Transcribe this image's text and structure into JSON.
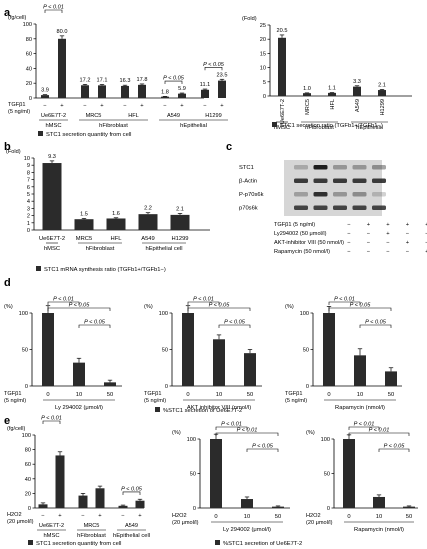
{
  "panel_labels": {
    "a": "a",
    "b": "b",
    "c": "c",
    "d": "d",
    "e": "e"
  },
  "chart_data": [
    {
      "id": "a1",
      "type": "bar",
      "yunit": "(fg/cell)",
      "ylim": [
        0,
        100
      ],
      "yticks": [
        0,
        20,
        40,
        60,
        80,
        100
      ],
      "values": [
        3.9,
        80.0,
        17.2,
        17.1,
        16.3,
        17.8,
        1.8,
        5.9,
        11.1,
        23.5
      ],
      "errors": [
        0.6,
        4.0,
        1.2,
        1.1,
        1.0,
        1.2,
        0.4,
        0.8,
        1.0,
        1.8
      ],
      "data_labels": [
        "3.9",
        "80.0",
        "17.2",
        "17.1",
        "16.3",
        "17.8",
        "1.8",
        "5.9",
        "11.1",
        "23.5"
      ],
      "categories": [
        "−",
        "+",
        "−",
        "+",
        "−",
        "+",
        "−",
        "+",
        "−",
        "+"
      ],
      "groups": [
        "Ue6E7T-2",
        "MRC5",
        "HFL",
        "A549",
        "H1299"
      ],
      "supergroups": [
        "hMSC",
        "hFibroblast",
        "hEpithelial"
      ],
      "row_label": [
        "TGFβ1",
        "(5 ng/ml)"
      ],
      "annotations": [
        "P < 0.01",
        "P < 0.05",
        "P < 0.05"
      ],
      "legend": "STC1 secretion quantity from cell"
    },
    {
      "id": "a2",
      "type": "bar",
      "yunit": "(Fold)",
      "ylim": [
        0,
        25
      ],
      "yticks": [
        0,
        5,
        10,
        15,
        20,
        25
      ],
      "values": [
        20.5,
        1.0,
        1.1,
        3.3,
        2.1
      ],
      "errors": [
        1.0,
        0.1,
        0.1,
        0.3,
        0.2
      ],
      "data_labels": [
        "20.5",
        "1.0",
        "1.1",
        "3.3",
        "2.1"
      ],
      "categories": [
        "Ue6E7T-2",
        "MRC5",
        "HFL",
        "A549",
        "H1299"
      ],
      "supergroups": [
        "hMSC",
        "hFibroblast",
        "hEpithelial"
      ],
      "legend": "STC1 secretion ratio (TGFb1+/TGFb1−)"
    },
    {
      "id": "b",
      "type": "bar",
      "yunit": "(Fold)",
      "ylim": [
        0,
        10
      ],
      "yticks": [
        0,
        1,
        2,
        3,
        4,
        5,
        6,
        7,
        8,
        9,
        10
      ],
      "values": [
        9.3,
        1.5,
        1.6,
        2.2,
        2.1
      ],
      "errors": [
        0.3,
        0.1,
        0.1,
        0.2,
        0.2
      ],
      "data_labels": [
        "9.3",
        "1.5",
        "1.6",
        "2.2",
        "2.1"
      ],
      "categories": [
        "Ue6E7T-2",
        "MRC5",
        "HFL",
        "A549",
        "H1299"
      ],
      "supergroups": [
        "hMSC",
        "hFibroblast",
        "hEpithelial cell"
      ],
      "legend": "STC1 mRNA synthesis ratio (TGFb1+/TGFb1−)"
    },
    {
      "id": "d1",
      "type": "bar",
      "yunit": "(%)",
      "ylim": [
        0,
        100
      ],
      "yticks": [
        0,
        50,
        100
      ],
      "values": [
        100,
        32,
        5
      ],
      "errors": [
        10,
        6,
        3
      ],
      "categories": [
        "0",
        "10",
        "50"
      ],
      "row_label": [
        "TGFβ1",
        "(5 ng/ml)"
      ],
      "xlabel": "Ly 294002 (μmol/l)",
      "annotations": [
        "P < 0.01",
        "P < 0.05",
        "P < 0.05"
      ],
      "legend": "%STC1 secretion of Ue6E7T-2"
    },
    {
      "id": "d2",
      "type": "bar",
      "yunit": "(%)",
      "ylim": [
        0,
        100
      ],
      "yticks": [
        0,
        50,
        100
      ],
      "values": [
        100,
        64,
        45
      ],
      "errors": [
        10,
        6,
        5
      ],
      "categories": [
        "0",
        "10",
        "50"
      ],
      "row_label": [
        "TGFβ1",
        "(5 ng/ml)"
      ],
      "xlabel": "AKT inhibitor VIII (nmol/l)",
      "annotations": [
        "P < 0.01",
        "P < 0.05",
        "P < 0.05"
      ]
    },
    {
      "id": "d3",
      "type": "bar",
      "yunit": "(%)",
      "ylim": [
        0,
        100
      ],
      "yticks": [
        0,
        50,
        100
      ],
      "values": [
        100,
        42,
        20
      ],
      "errors": [
        9,
        9,
        5
      ],
      "categories": [
        "0",
        "10",
        "50"
      ],
      "row_label": [
        "TGFβ1",
        "(5 ng/ml)"
      ],
      "xlabel": "Rapamycin (nmol/l)",
      "annotations": [
        "P < 0.01",
        "P < 0.05",
        "P < 0.05"
      ]
    },
    {
      "id": "e1",
      "type": "bar",
      "yunit": "(fg/cell)",
      "ylim": [
        0,
        100
      ],
      "yticks": [
        0,
        20,
        40,
        60,
        80,
        100
      ],
      "values": [
        5,
        72,
        17,
        27,
        3,
        10
      ],
      "errors": [
        2,
        5,
        3,
        3,
        1,
        2
      ],
      "categories": [
        "−",
        "+",
        "−",
        "+",
        "−",
        "+"
      ],
      "groups": [
        "Ue6E7T-2",
        "MRC5",
        "A549"
      ],
      "supergroups": [
        "hMSC",
        "hFibroblast",
        "hEpithelial cell"
      ],
      "row_label": [
        "H2O2",
        "(20 μmol/l)"
      ],
      "annotations": [
        "P < 0.01",
        "P < 0.05"
      ],
      "legend": "STC1 secretion quantity from cell"
    },
    {
      "id": "e2",
      "type": "bar",
      "yunit": "(%)",
      "ylim": [
        0,
        100
      ],
      "yticks": [
        0,
        50,
        100
      ],
      "values": [
        100,
        13,
        2
      ],
      "errors": [
        7,
        3,
        1
      ],
      "categories": [
        "0",
        "10",
        "50"
      ],
      "row_label": [
        "H2O2",
        "(20 μmol/l)"
      ],
      "xlabel": "Ly 294002 (μmol/l)",
      "annotations": [
        "P < 0.01",
        "P < 0.01",
        "P < 0.05"
      ],
      "legend": "%STC1 secretion of Ue6E7T-2"
    },
    {
      "id": "e3",
      "type": "bar",
      "yunit": "(%)",
      "ylim": [
        0,
        100
      ],
      "yticks": [
        0,
        50,
        100
      ],
      "values": [
        100,
        16,
        2
      ],
      "errors": [
        6,
        3,
        1
      ],
      "categories": [
        "0",
        "10",
        "50"
      ],
      "row_label": [
        "H2O2",
        "(20 μmol/l)"
      ],
      "xlabel": "Rapamycin (nmol/l)",
      "annotations": [
        "P < 0.01",
        "P < 0.01",
        "P < 0.05"
      ]
    }
  ],
  "western_blot": {
    "bands": [
      "STC1",
      "β-Actin",
      "P-p70s6k",
      "p70s6k"
    ],
    "rows": [
      {
        "label": "TGFβ1 (5 ng/ml)",
        "signs": [
          "−",
          "+",
          "+",
          "+",
          "+"
        ]
      },
      {
        "label": "Ly294002 (50 μmol/l)",
        "signs": [
          "−",
          "−",
          "+",
          "−",
          "−"
        ]
      },
      {
        "label": "AKT-inhibitor VIII (50 nmol/l)",
        "signs": [
          "−",
          "−",
          "−",
          "+",
          "−"
        ]
      },
      {
        "label": "Rapamycin (50 nmol/l)",
        "signs": [
          "−",
          "−",
          "−",
          "−",
          "+"
        ]
      }
    ]
  },
  "colors": {
    "bar": "#2b2b2b",
    "axis": "#000000",
    "blot_bg": "#d6d6d6",
    "band": "#1e1e1e"
  }
}
